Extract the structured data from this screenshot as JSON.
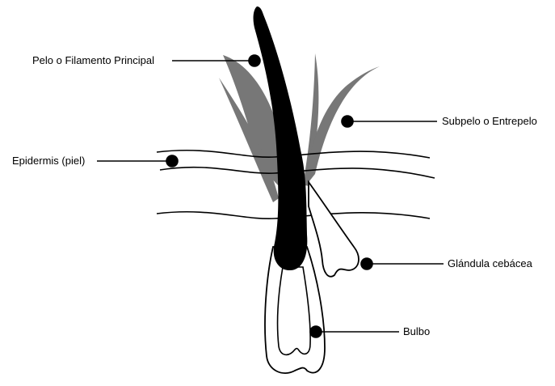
{
  "labels": {
    "pelo": "Pelo o Filamento Principal",
    "epidermis": "Epidermis (piel)",
    "subpelo": "Subpelo o Entrepelo",
    "glandula": "Glándula cebácea",
    "bulbo": "Bulbo"
  },
  "colors": {
    "main_hair": "#000000",
    "underhair": "#777777",
    "outline": "#000000",
    "background": "#ffffff"
  }
}
